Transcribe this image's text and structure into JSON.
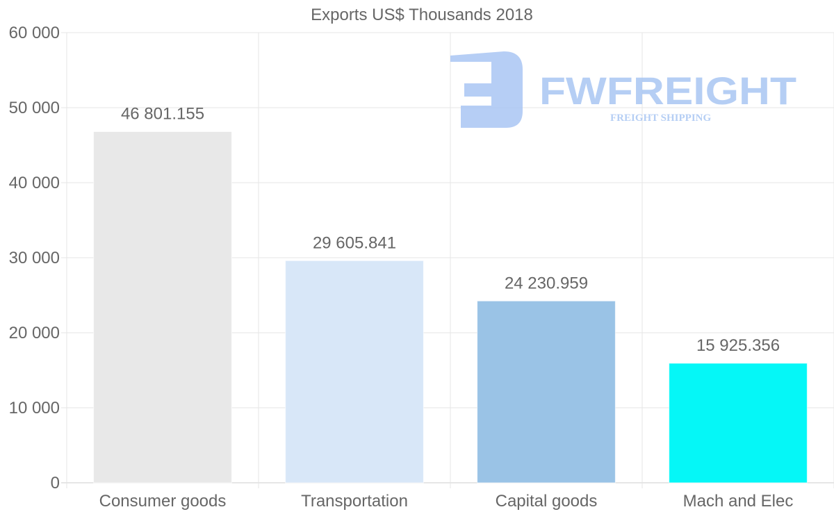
{
  "chart_data": {
    "type": "bar",
    "title": "Exports US$ Thousands 2018",
    "categories": [
      "Consumer goods",
      "Transportation",
      "Capital goods",
      "Mach and Elec"
    ],
    "values": [
      46801.155,
      29605.841,
      24230.959,
      15925.356
    ],
    "value_labels": [
      "46 801.155",
      "29 605.841",
      "24 230.959",
      "15 925.356"
    ],
    "colors": [
      "#e8e8e8",
      "#d8e7f8",
      "#9ac3e6",
      "#05f7f7"
    ],
    "ylim": [
      0,
      60000
    ],
    "yticks": [
      0,
      10000,
      20000,
      30000,
      40000,
      50000,
      60000
    ],
    "ytick_labels": [
      "0",
      "10 000",
      "20 000",
      "30 000",
      "40 000",
      "50 000",
      "60 000"
    ],
    "xlabel": "",
    "ylabel": "",
    "grid": true,
    "legend": "none"
  },
  "watermark": {
    "brand": "FWFREIGHT",
    "tagline": "FREIGHT SHIPPING",
    "color": "#a9c6f3"
  }
}
